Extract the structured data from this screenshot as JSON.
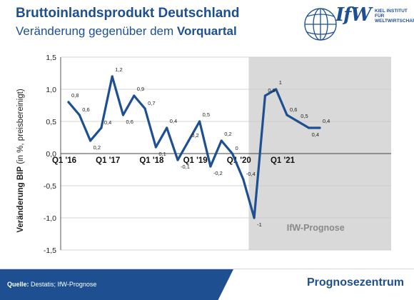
{
  "header": {
    "title": "Bruttoinlandsprodukt Deutschland",
    "subtitle_plain": "Veränderung gegenüber dem ",
    "subtitle_bold": "Vorquartal"
  },
  "logo": {
    "mark": "IfW",
    "line1": "KIEL INSTITUT FÜR",
    "line2": "WELTWIRTSCHAFT"
  },
  "footer": {
    "source_label": "Quelle:",
    "source_text": " Destatis; IfW-Prognose",
    "center": "Prognosezentrum"
  },
  "chart_data": {
    "type": "line",
    "ylabel": "Veränderung BIP (in %, preisbereinigt)",
    "ylim": [
      -1.5,
      1.5
    ],
    "yticks": [
      "1,5",
      "1,0",
      "0,5",
      "0,0",
      "-0,5",
      "-1,0",
      "-1,5"
    ],
    "ytick_values": [
      1.5,
      1.0,
      0.5,
      0.0,
      -0.5,
      -1.0,
      -1.5
    ],
    "grid": true,
    "x_labels": [
      "Q1 '16",
      "Q1 '17",
      "Q1 '18",
      "Q1 '19",
      "Q1 '20",
      "Q1 '21"
    ],
    "x_label_quarter_index": [
      0,
      4,
      8,
      12,
      16,
      20
    ],
    "forecast_label": "IfW-Prognose",
    "forecast_start_index": 16.5,
    "line_color": "#1d4f91",
    "forecast_shade": "#d9d9d9",
    "quarters": [
      "Q1 2016",
      "Q2 2016",
      "Q3 2016",
      "Q4 2016",
      "Q1 2017",
      "Q2 2017",
      "Q3 2017",
      "Q4 2017",
      "Q1 2018",
      "Q2 2018",
      "Q3 2018",
      "Q4 2018",
      "Q1 2019",
      "Q2 2019",
      "Q3 2019",
      "Q4 2019",
      "Q1 2020",
      "Q2 2020",
      "Q3 2020",
      "Q4 2020",
      "Q1 2021",
      "Q2 2021",
      "Q3 2021",
      "Q4 2021"
    ],
    "values": [
      0.8,
      0.6,
      0.2,
      0.4,
      1.2,
      0.6,
      0.9,
      0.7,
      0.1,
      0.4,
      -0.1,
      0.2,
      0.5,
      -0.2,
      0.2,
      0.0,
      -0.4,
      -1.0,
      0.9,
      1.0,
      0.6,
      0.5,
      0.4,
      0.4
    ],
    "data_labels": [
      "0,8",
      "0,6",
      "0,2",
      "0,4",
      "1,2",
      "0,6",
      "0,9",
      "0,7",
      "0,1",
      "0,4",
      "-0,1",
      "0,2",
      "0,5",
      "-0,2",
      "0,2",
      "0",
      "-0,4",
      "-1",
      "0,9",
      "1",
      "0,6",
      "0,5",
      "0,4",
      "0,4"
    ]
  }
}
